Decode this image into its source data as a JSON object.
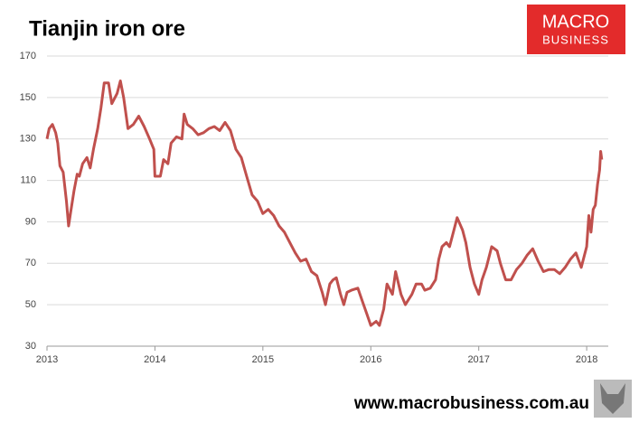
{
  "chart_data": {
    "type": "line",
    "title": "Tianjin iron ore",
    "series": [
      {
        "name": "Tianjin iron ore",
        "color": "#c0504d",
        "x": [
          2013.0,
          2013.02,
          2013.05,
          2013.08,
          2013.1,
          2013.12,
          2013.15,
          2013.18,
          2013.2,
          2013.22,
          2013.25,
          2013.28,
          2013.3,
          2013.33,
          2013.37,
          2013.4,
          2013.43,
          2013.47,
          2013.5,
          2013.53,
          2013.57,
          2013.6,
          2013.65,
          2013.68,
          2013.71,
          2013.75,
          2013.8,
          2013.85,
          2013.9,
          2013.95,
          2013.99,
          2014.0,
          2014.05,
          2014.08,
          2014.12,
          2014.15,
          2014.2,
          2014.25,
          2014.27,
          2014.3,
          2014.35,
          2014.4,
          2014.45,
          2014.5,
          2014.55,
          2014.6,
          2014.65,
          2014.7,
          2014.75,
          2014.8,
          2014.85,
          2014.9,
          2014.95,
          2015.0,
          2015.05,
          2015.1,
          2015.15,
          2015.2,
          2015.25,
          2015.3,
          2015.35,
          2015.4,
          2015.45,
          2015.5,
          2015.55,
          2015.58,
          2015.62,
          2015.65,
          2015.68,
          2015.72,
          2015.75,
          2015.78,
          2015.82,
          2015.88,
          2015.92,
          2015.96,
          2016.0,
          2016.05,
          2016.08,
          2016.12,
          2016.15,
          2016.2,
          2016.23,
          2016.28,
          2016.32,
          2016.38,
          2016.42,
          2016.47,
          2016.5,
          2016.55,
          2016.6,
          2016.63,
          2016.66,
          2016.7,
          2016.73,
          2016.77,
          2016.8,
          2016.85,
          2016.88,
          2016.92,
          2016.96,
          2017.0,
          2017.03,
          2017.07,
          2017.12,
          2017.17,
          2017.2,
          2017.25,
          2017.3,
          2017.35,
          2017.4,
          2017.45,
          2017.5,
          2017.55,
          2017.6,
          2017.65,
          2017.7,
          2017.75,
          2017.8,
          2017.85,
          2017.9,
          2017.95,
          2018.0,
          2018.02,
          2018.04,
          2018.06,
          2018.08,
          2018.1,
          2018.12,
          2018.13,
          2018.14
        ],
        "values": [
          130,
          135,
          137,
          133,
          128,
          117,
          114,
          100,
          88,
          95,
          105,
          113,
          112,
          118,
          121,
          116,
          125,
          135,
          145,
          157,
          157,
          147,
          152,
          158,
          150,
          135,
          137,
          141,
          136,
          130,
          125,
          112,
          112,
          120,
          118,
          128,
          131,
          130,
          142,
          137,
          135,
          132,
          133,
          135,
          136,
          134,
          138,
          134,
          125,
          121,
          112,
          103,
          100,
          94,
          96,
          93,
          88,
          85,
          80,
          75,
          71,
          72,
          66,
          64,
          56,
          50,
          60,
          62,
          63,
          55,
          50,
          56,
          57,
          58,
          52,
          46,
          40,
          42,
          40,
          48,
          60,
          55,
          66,
          55,
          50,
          55,
          60,
          60,
          57,
          58,
          62,
          72,
          78,
          80,
          78,
          86,
          92,
          86,
          80,
          68,
          60,
          55,
          62,
          68,
          78,
          76,
          70,
          62,
          62,
          67,
          70,
          74,
          77,
          71,
          66,
          67,
          67,
          65,
          68,
          72,
          75,
          68,
          78,
          93,
          85,
          96,
          98,
          108,
          115,
          124,
          120
        ]
      }
    ],
    "xlim": [
      2013,
      2018.2
    ],
    "xticks": [
      2013,
      2014,
      2015,
      2016,
      2017,
      2018
    ],
    "ylim": [
      30,
      170
    ],
    "yticks": [
      30,
      50,
      70,
      90,
      110,
      130,
      150,
      170
    ],
    "grid": true
  },
  "logo": {
    "line1": "MACRO",
    "line2": "BUSINESS"
  },
  "footer": "www.macrobusiness.com.au"
}
